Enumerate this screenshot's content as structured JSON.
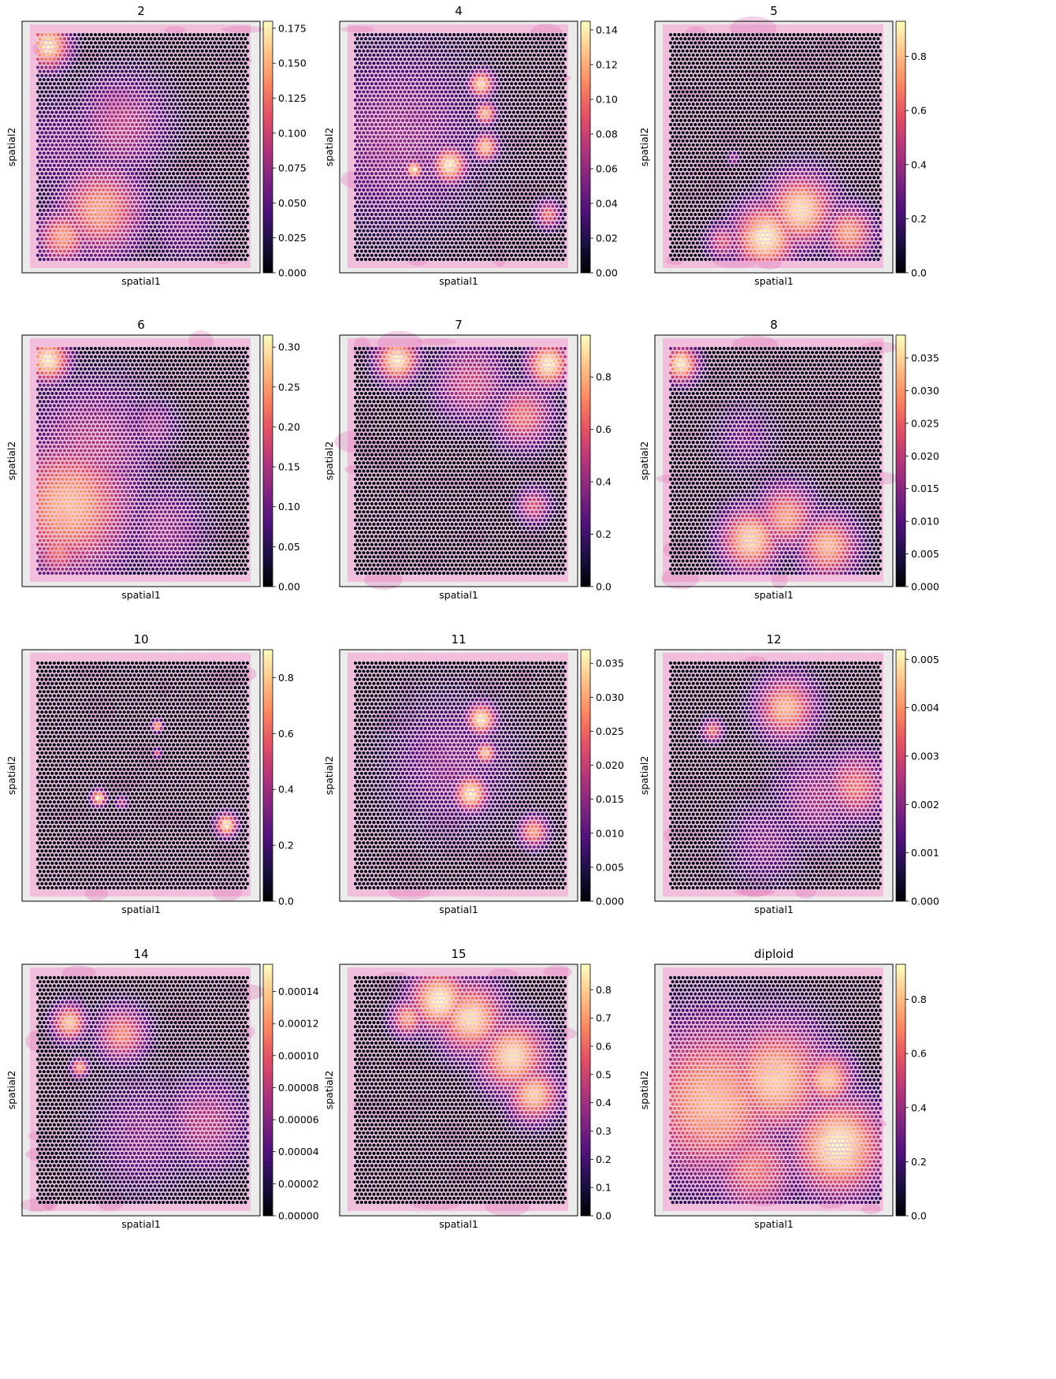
{
  "colormap": {
    "name": "magma",
    "stops": [
      "#000004",
      "#1c1044",
      "#4f127b",
      "#812581",
      "#b5367a",
      "#e55064",
      "#fb8761",
      "#fec287",
      "#fcfdbf"
    ]
  },
  "colors": {
    "tissue_light": "#f2b6d8",
    "tissue_dark": "#e07fb9",
    "background": "#ebebeb",
    "spot_edge": "#ffffff"
  },
  "chart_data": [
    {
      "type": "heatmap",
      "title": "2",
      "xlabel": "spatial1",
      "ylabel": "spatial2",
      "colorbar": {
        "range": [
          0.0,
          0.18
        ],
        "ticks": [
          "0.000",
          "0.025",
          "0.050",
          "0.075",
          "0.100",
          "0.125",
          "0.150",
          "0.175"
        ]
      },
      "hotspots": [
        {
          "u": 0.05,
          "v": 0.05,
          "r": 0.1,
          "level": 1.0
        },
        {
          "u": 0.4,
          "v": 0.4,
          "r": 0.22,
          "level": 0.5
        },
        {
          "u": 0.3,
          "v": 0.78,
          "r": 0.2,
          "level": 0.8
        },
        {
          "u": 0.12,
          "v": 0.9,
          "r": 0.12,
          "level": 0.8
        },
        {
          "u": 0.12,
          "v": 0.5,
          "r": 0.25,
          "level": 0.3
        },
        {
          "u": 0.7,
          "v": 0.85,
          "r": 0.18,
          "level": 0.3
        }
      ]
    },
    {
      "type": "heatmap",
      "title": "4",
      "xlabel": "spatial1",
      "ylabel": "spatial2",
      "colorbar": {
        "range": [
          0.0,
          0.145
        ],
        "ticks": [
          "0.00",
          "0.02",
          "0.04",
          "0.06",
          "0.08",
          "0.10",
          "0.12",
          "0.14"
        ]
      },
      "hotspots": [
        {
          "u": 0.2,
          "v": 0.45,
          "r": 0.4,
          "level": 0.4
        },
        {
          "u": 0.6,
          "v": 0.22,
          "r": 0.06,
          "level": 0.95
        },
        {
          "u": 0.62,
          "v": 0.35,
          "r": 0.05,
          "level": 0.9
        },
        {
          "u": 0.45,
          "v": 0.58,
          "r": 0.08,
          "level": 1.0
        },
        {
          "u": 0.62,
          "v": 0.5,
          "r": 0.06,
          "level": 0.9
        },
        {
          "u": 0.28,
          "v": 0.6,
          "r": 0.04,
          "level": 1.0
        },
        {
          "u": 0.92,
          "v": 0.8,
          "r": 0.06,
          "level": 0.7
        }
      ]
    },
    {
      "type": "heatmap",
      "title": "5",
      "xlabel": "spatial1",
      "ylabel": "spatial2",
      "colorbar": {
        "range": [
          0.0,
          0.93
        ],
        "ticks": [
          "0.0",
          "0.2",
          "0.4",
          "0.6",
          "0.8"
        ]
      },
      "hotspots": [
        {
          "u": 0.45,
          "v": 0.9,
          "r": 0.15,
          "level": 1.0
        },
        {
          "u": 0.62,
          "v": 0.78,
          "r": 0.16,
          "level": 0.95
        },
        {
          "u": 0.85,
          "v": 0.88,
          "r": 0.12,
          "level": 0.8
        },
        {
          "u": 0.25,
          "v": 0.92,
          "r": 0.08,
          "level": 0.6
        },
        {
          "u": 0.3,
          "v": 0.55,
          "r": 0.03,
          "level": 0.4
        }
      ]
    },
    {
      "type": "heatmap",
      "title": "6",
      "xlabel": "spatial1",
      "ylabel": "spatial2",
      "colorbar": {
        "range": [
          0.0,
          0.315
        ],
        "ticks": [
          "0.00",
          "0.05",
          "0.10",
          "0.15",
          "0.20",
          "0.25",
          "0.30"
        ]
      },
      "hotspots": [
        {
          "u": 0.15,
          "v": 0.7,
          "r": 0.3,
          "level": 0.85
        },
        {
          "u": 0.05,
          "v": 0.05,
          "r": 0.1,
          "level": 1.0
        },
        {
          "u": 0.25,
          "v": 0.45,
          "r": 0.3,
          "level": 0.5
        },
        {
          "u": 0.55,
          "v": 0.35,
          "r": 0.12,
          "level": 0.4
        },
        {
          "u": 0.6,
          "v": 0.8,
          "r": 0.2,
          "level": 0.4
        },
        {
          "u": 0.1,
          "v": 0.9,
          "r": 0.12,
          "level": 0.7
        }
      ]
    },
    {
      "type": "heatmap",
      "title": "7",
      "xlabel": "spatial1",
      "ylabel": "spatial2",
      "colorbar": {
        "range": [
          0.0,
          0.96
        ],
        "ticks": [
          "0.0",
          "0.2",
          "0.4",
          "0.6",
          "0.8"
        ]
      },
      "hotspots": [
        {
          "u": 0.2,
          "v": 0.05,
          "r": 0.1,
          "level": 1.0
        },
        {
          "u": 0.92,
          "v": 0.07,
          "r": 0.1,
          "level": 1.0
        },
        {
          "u": 0.55,
          "v": 0.15,
          "r": 0.18,
          "level": 0.55
        },
        {
          "u": 0.8,
          "v": 0.3,
          "r": 0.14,
          "level": 0.7
        },
        {
          "u": 0.85,
          "v": 0.7,
          "r": 0.08,
          "level": 0.6
        }
      ]
    },
    {
      "type": "heatmap",
      "title": "8",
      "xlabel": "spatial1",
      "ylabel": "spatial2",
      "colorbar": {
        "range": [
          0.0,
          0.0385
        ],
        "ticks": [
          "0.000",
          "0.005",
          "0.010",
          "0.015",
          "0.020",
          "0.025",
          "0.030",
          "0.035"
        ]
      },
      "hotspots": [
        {
          "u": 0.05,
          "v": 0.07,
          "r": 0.08,
          "level": 1.0
        },
        {
          "u": 0.38,
          "v": 0.85,
          "r": 0.14,
          "level": 0.95
        },
        {
          "u": 0.55,
          "v": 0.75,
          "r": 0.14,
          "level": 0.8
        },
        {
          "u": 0.75,
          "v": 0.88,
          "r": 0.14,
          "level": 0.85
        },
        {
          "u": 0.35,
          "v": 0.4,
          "r": 0.15,
          "level": 0.3
        }
      ]
    },
    {
      "type": "heatmap",
      "title": "10",
      "xlabel": "spatial1",
      "ylabel": "spatial2",
      "colorbar": {
        "range": [
          0.0,
          0.9
        ],
        "ticks": [
          "0.0",
          "0.2",
          "0.4",
          "0.6",
          "0.8"
        ]
      },
      "hotspots": [
        {
          "u": 0.29,
          "v": 0.6,
          "r": 0.035,
          "level": 1.0
        },
        {
          "u": 0.57,
          "v": 0.28,
          "r": 0.025,
          "level": 0.9
        },
        {
          "u": 0.9,
          "v": 0.72,
          "r": 0.05,
          "level": 1.0
        },
        {
          "u": 0.4,
          "v": 0.62,
          "r": 0.03,
          "level": 0.5
        },
        {
          "u": 0.57,
          "v": 0.4,
          "r": 0.02,
          "level": 0.6
        }
      ]
    },
    {
      "type": "heatmap",
      "title": "11",
      "xlabel": "spatial1",
      "ylabel": "spatial2",
      "colorbar": {
        "range": [
          0.0,
          0.037
        ],
        "ticks": [
          "0.000",
          "0.005",
          "0.010",
          "0.015",
          "0.020",
          "0.025",
          "0.030",
          "0.035"
        ]
      },
      "hotspots": [
        {
          "u": 0.6,
          "v": 0.25,
          "r": 0.07,
          "level": 1.0
        },
        {
          "u": 0.55,
          "v": 0.58,
          "r": 0.08,
          "level": 1.0
        },
        {
          "u": 0.62,
          "v": 0.4,
          "r": 0.05,
          "level": 0.9
        },
        {
          "u": 0.85,
          "v": 0.75,
          "r": 0.07,
          "level": 0.8
        },
        {
          "u": 0.45,
          "v": 0.45,
          "r": 0.3,
          "level": 0.35
        }
      ]
    },
    {
      "type": "heatmap",
      "title": "12",
      "xlabel": "spatial1",
      "ylabel": "spatial2",
      "colorbar": {
        "range": [
          0.0,
          0.0052
        ],
        "ticks": [
          "0.000",
          "0.001",
          "0.002",
          "0.003",
          "0.004",
          "0.005"
        ]
      },
      "hotspots": [
        {
          "u": 0.55,
          "v": 0.2,
          "r": 0.14,
          "level": 0.85
        },
        {
          "u": 0.88,
          "v": 0.55,
          "r": 0.15,
          "level": 0.7
        },
        {
          "u": 0.7,
          "v": 0.6,
          "r": 0.2,
          "level": 0.45
        },
        {
          "u": 0.2,
          "v": 0.3,
          "r": 0.05,
          "level": 0.7
        },
        {
          "u": 0.45,
          "v": 0.8,
          "r": 0.18,
          "level": 0.35
        }
      ]
    },
    {
      "type": "heatmap",
      "title": "14",
      "xlabel": "spatial1",
      "ylabel": "spatial2",
      "colorbar": {
        "range": [
          0.0,
          0.000157
        ],
        "ticks": [
          "0.00000",
          "0.00002",
          "0.00004",
          "0.00006",
          "0.00008",
          "0.00010",
          "0.00012",
          "0.00014"
        ]
      },
      "hotspots": [
        {
          "u": 0.15,
          "v": 0.2,
          "r": 0.08,
          "level": 0.9
        },
        {
          "u": 0.4,
          "v": 0.25,
          "r": 0.12,
          "level": 0.75
        },
        {
          "u": 0.2,
          "v": 0.4,
          "r": 0.04,
          "level": 0.85
        },
        {
          "u": 0.8,
          "v": 0.65,
          "r": 0.2,
          "level": 0.5
        },
        {
          "u": 0.5,
          "v": 0.7,
          "r": 0.25,
          "level": 0.35
        }
      ]
    },
    {
      "type": "heatmap",
      "title": "15",
      "xlabel": "spatial1",
      "ylabel": "spatial2",
      "colorbar": {
        "range": [
          0.0,
          0.89
        ],
        "ticks": [
          "0.0",
          "0.1",
          "0.2",
          "0.3",
          "0.4",
          "0.5",
          "0.6",
          "0.7",
          "0.8"
        ]
      },
      "hotspots": [
        {
          "u": 0.4,
          "v": 0.1,
          "r": 0.14,
          "level": 1.0
        },
        {
          "u": 0.55,
          "v": 0.18,
          "r": 0.16,
          "level": 0.95
        },
        {
          "u": 0.75,
          "v": 0.35,
          "r": 0.16,
          "level": 0.95
        },
        {
          "u": 0.85,
          "v": 0.52,
          "r": 0.12,
          "level": 0.9
        },
        {
          "u": 0.25,
          "v": 0.18,
          "r": 0.08,
          "level": 0.8
        }
      ]
    },
    {
      "type": "heatmap",
      "title": "diploid",
      "xlabel": "spatial1",
      "ylabel": "spatial2",
      "colorbar": {
        "range": [
          0.0,
          0.93
        ],
        "ticks": [
          "0.0",
          "0.2",
          "0.4",
          "0.6",
          "0.8"
        ]
      },
      "hotspots": [
        {
          "u": 0.2,
          "v": 0.55,
          "r": 0.35,
          "level": 0.85
        },
        {
          "u": 0.5,
          "v": 0.45,
          "r": 0.25,
          "level": 0.9
        },
        {
          "u": 0.8,
          "v": 0.75,
          "r": 0.22,
          "level": 1.0
        },
        {
          "u": 0.4,
          "v": 0.85,
          "r": 0.2,
          "level": 0.7
        },
        {
          "u": 0.75,
          "v": 0.45,
          "r": 0.12,
          "level": 0.9
        }
      ]
    }
  ]
}
